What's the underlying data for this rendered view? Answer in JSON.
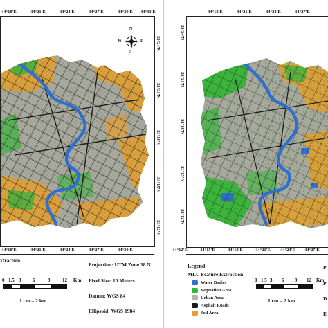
{
  "left_panel": {
    "top_ticks": [
      "44°18'E",
      "44°21'E",
      "44°24'E",
      "44°27'E",
      "44°30'E",
      "44°33'E"
    ],
    "bottom_ticks": [
      "44°18'E",
      "44°21'E",
      "44°24'E",
      "44°27'E",
      "44°30'E"
    ],
    "right_ticks": [
      "33°24'N",
      "33°21'N",
      "33°18'N",
      "33°15'N",
      "33°12'N"
    ],
    "legend_tail": "xtraction",
    "projection": "Projection: UTM Zone 38 N",
    "pixel_size": "Pixel Size: 10 Meters",
    "datum": "Datum: WGS 84",
    "ellipsoid": "Ellipsoid: WGS 1984",
    "scale_ticks": [
      "0",
      "1.5",
      "3",
      "6",
      "9",
      "12"
    ],
    "scale_unit": "Km",
    "scale_ratio": "1 cm = 2 km",
    "north_letters": {
      "n": "N",
      "e": "E",
      "s": "S",
      "w": "W"
    }
  },
  "right_panel": {
    "top_ticks": [
      "44°18'E",
      "44°21'E",
      "44°24'E",
      "44°27'E"
    ],
    "bottom_ticks": [
      "44°12'E",
      "44°15'E",
      "44°18'E",
      "44°21'E",
      "44°24'E",
      "44°27'E"
    ],
    "left_ticks": [
      "33°24'N",
      "33°21'N",
      "33°18'N",
      "33°15'N",
      "33°12'N"
    ],
    "legend_title": "Legend",
    "legend_subtitle": "MLC Feature Extraction",
    "legend_items": [
      {
        "label": "Water Bodies",
        "color": "#2f6fd0"
      },
      {
        "label": "Vegetation Area",
        "color": "#2fb83a"
      },
      {
        "label": "Urban Area",
        "color": "#b4b4a8"
      },
      {
        "label": "Asphalt Roads",
        "color": "#1c1c1c"
      },
      {
        "label": "Soil Area",
        "color": "#e0a132"
      }
    ],
    "scale_ticks": [
      "0",
      "1.5",
      "3",
      "6",
      "9",
      "12"
    ],
    "scale_unit": "Km",
    "scale_ratio": "1 cm = 2 km",
    "cut_text": [
      "P",
      "P",
      "D",
      "E"
    ]
  },
  "colors": {
    "water": "#2f6fd0",
    "vegetation": "#3cb53c",
    "urban": "#a9aa9e",
    "roads": "#1c1c1c",
    "soil": "#dda13c"
  }
}
